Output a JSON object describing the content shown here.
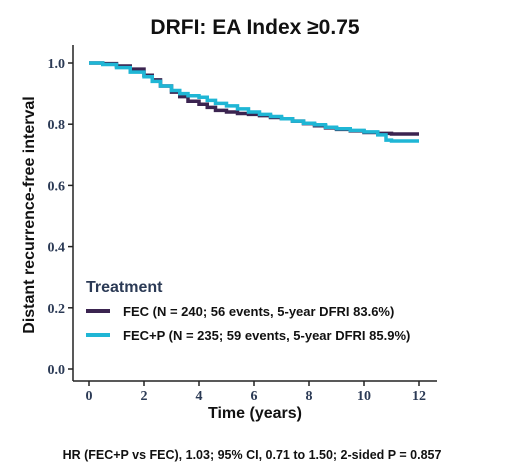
{
  "chart_data": {
    "type": "line",
    "title": "DRFI: EA Index ≥0.75",
    "xlabel": "Time (years)",
    "ylabel": "Distant recurrence-free interval",
    "xlim": [
      0,
      12
    ],
    "ylim": [
      0,
      1.0
    ],
    "x_ticks": [
      "0",
      "2",
      "4",
      "6",
      "8",
      "10",
      "12"
    ],
    "y_ticks": [
      "0.0",
      "0.2",
      "0.4",
      "0.6",
      "0.8",
      "1.0"
    ],
    "legend": {
      "title": "Treatment",
      "placement": "bottom-left"
    },
    "series": [
      {
        "name": "FEC (N = 240; 56 events, 5-year DFRI 83.6%)",
        "color": "#3b2450",
        "x": [
          0,
          0.5,
          1.0,
          1.5,
          2.0,
          2.3,
          2.6,
          3.0,
          3.3,
          3.6,
          4.0,
          4.3,
          4.6,
          5.0,
          5.4,
          5.8,
          6.2,
          6.6,
          7.0,
          7.4,
          7.8,
          8.2,
          8.6,
          9.0,
          9.5,
          10.0,
          10.5,
          11.0,
          11.5,
          12.0
        ],
        "y": [
          1.0,
          0.998,
          0.99,
          0.98,
          0.96,
          0.945,
          0.925,
          0.905,
          0.89,
          0.875,
          0.865,
          0.855,
          0.845,
          0.84,
          0.835,
          0.832,
          0.828,
          0.822,
          0.818,
          0.81,
          0.802,
          0.795,
          0.788,
          0.783,
          0.778,
          0.773,
          0.77,
          0.768,
          0.768,
          0.768
        ]
      },
      {
        "name": "FEC+P (N = 235; 59 events, 5-year DFRI 85.9%)",
        "color": "#1fb6d5",
        "x": [
          0,
          0.5,
          1.0,
          1.5,
          2.0,
          2.3,
          2.6,
          3.0,
          3.3,
          3.6,
          4.0,
          4.3,
          4.6,
          5.0,
          5.4,
          5.8,
          6.2,
          6.6,
          7.0,
          7.4,
          7.8,
          8.2,
          8.6,
          9.0,
          9.5,
          10.0,
          10.5,
          10.8,
          11.0,
          11.5,
          12.0
        ],
        "y": [
          1.0,
          0.995,
          0.985,
          0.97,
          0.955,
          0.94,
          0.925,
          0.91,
          0.9,
          0.893,
          0.888,
          0.878,
          0.868,
          0.86,
          0.85,
          0.84,
          0.832,
          0.825,
          0.818,
          0.81,
          0.803,
          0.798,
          0.79,
          0.785,
          0.78,
          0.775,
          0.765,
          0.748,
          0.745,
          0.745,
          0.745
        ]
      }
    ],
    "footnote": "HR (FEC+P vs FEC), 1.03; 95% CI, 0.71 to 1.50; 2-sided P = 0.857"
  }
}
